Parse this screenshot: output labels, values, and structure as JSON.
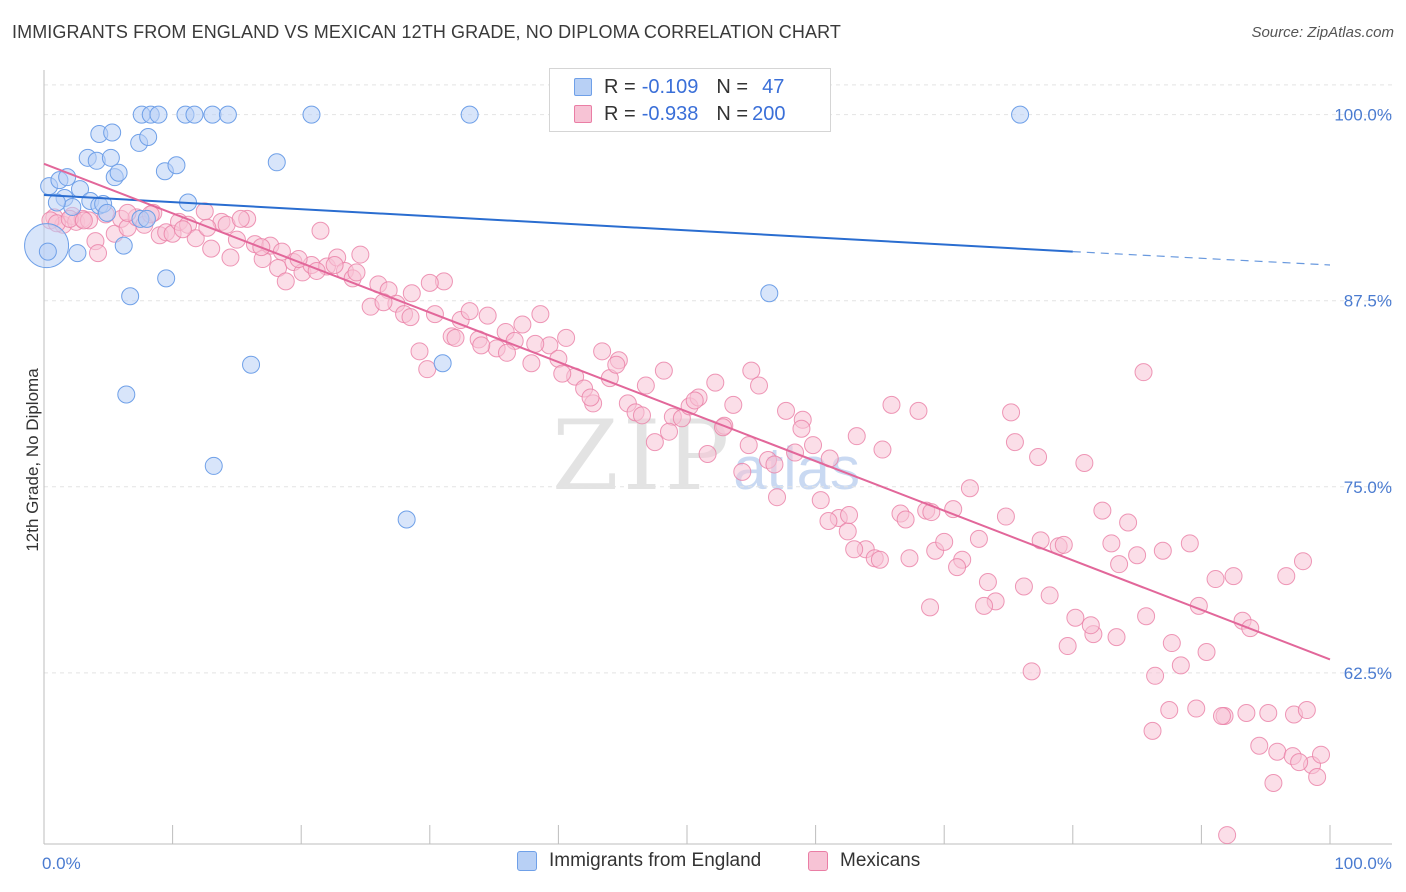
{
  "title": "IMMIGRANTS FROM ENGLAND VS MEXICAN 12TH GRADE, NO DIPLOMA CORRELATION CHART",
  "source": "Source: ZipAtlas.com",
  "watermark": {
    "main": "ZIP",
    "sub": "atlas"
  },
  "colors": {
    "blue": "#6fa0e8",
    "blue_fill": "#b8d0f5",
    "pink": "#ea7ea5",
    "pink_fill": "#f7c3d5",
    "blue_line": "#2a6dd0",
    "pink_line": "#e2679a"
  },
  "legend": {
    "rows": [
      {
        "r_label": "R =",
        "r_value": "-0.109",
        "n_label": "N =",
        "n_value": "47"
      },
      {
        "r_label": "R =",
        "r_value": "-0.938",
        "n_label": "N =",
        "n_value": "200"
      }
    ]
  },
  "bottom_legend": [
    "Immigrants from England",
    "Mexicans"
  ],
  "chart_data": {
    "type": "scatter",
    "xlabel": "",
    "ylabel": "12th Grade, No Diploma",
    "xlim": [
      0,
      100
    ],
    "ylim": [
      51,
      103
    ],
    "x_ticks": [
      "0.0%",
      "100.0%"
    ],
    "y_ticks": [
      {
        "value": 100,
        "label": "100.0%"
      },
      {
        "value": 87.5,
        "label": "87.5%"
      },
      {
        "value": 75,
        "label": "75.0%"
      },
      {
        "value": 62.5,
        "label": "62.5%"
      }
    ],
    "grid": true,
    "series": [
      {
        "name": "Immigrants from England",
        "trend": {
          "x0": 0,
          "y0": 94.6,
          "x1": 80,
          "y1": 90.8,
          "dashed_to_x": 100,
          "dashed_to_y": 89.9
        },
        "points": [
          [
            0.4,
            95.2
          ],
          [
            1.2,
            95.6
          ],
          [
            1.8,
            95.8
          ],
          [
            1.6,
            94.4
          ],
          [
            2.2,
            93.8
          ],
          [
            2.8,
            95.0
          ],
          [
            3.4,
            97.1
          ],
          [
            3.6,
            94.2
          ],
          [
            4.1,
            96.9
          ],
          [
            4.3,
            98.7
          ],
          [
            4.3,
            93.9
          ],
          [
            4.6,
            94.0
          ],
          [
            4.9,
            93.4
          ],
          [
            5.2,
            97.1
          ],
          [
            5.3,
            98.8
          ],
          [
            5.5,
            95.8
          ],
          [
            5.8,
            96.1
          ],
          [
            6.2,
            91.2
          ],
          [
            6.7,
            87.8
          ],
          [
            6.4,
            81.2
          ],
          [
            7.4,
            98.1
          ],
          [
            7.5,
            93.0
          ],
          [
            8.1,
            98.5
          ],
          [
            8.0,
            93.0
          ],
          [
            7.6,
            100.0
          ],
          [
            8.3,
            100.0
          ],
          [
            8.9,
            100.0
          ],
          [
            9.4,
            96.2
          ],
          [
            9.5,
            89.0
          ],
          [
            10.3,
            96.6
          ],
          [
            11.2,
            94.1
          ],
          [
            11.0,
            100.0
          ],
          [
            11.7,
            100.0
          ],
          [
            13.1,
            100.0
          ],
          [
            13.2,
            76.4
          ],
          [
            14.3,
            100.0
          ],
          [
            16.1,
            83.2
          ],
          [
            18.1,
            96.8
          ],
          [
            20.8,
            100.0
          ],
          [
            28.2,
            72.8
          ],
          [
            31.0,
            83.3
          ],
          [
            33.1,
            100.0
          ],
          [
            56.4,
            88.0
          ],
          [
            75.9,
            100.0
          ],
          [
            0.3,
            90.8
          ],
          [
            2.6,
            90.7
          ],
          [
            1.0,
            94.1
          ]
        ],
        "big_point": [
          0.2,
          91.2
        ]
      },
      {
        "name": "Mexicans",
        "trend": {
          "x0": 0,
          "y0": 96.7,
          "x1": 100,
          "y1": 63.4
        },
        "points": [
          [
            0.8,
            93.1
          ],
          [
            1.5,
            92.6
          ],
          [
            2.2,
            93.2
          ],
          [
            2.5,
            92.8
          ],
          [
            3.0,
            93.0
          ],
          [
            3.5,
            92.9
          ],
          [
            4.0,
            91.5
          ],
          [
            4.8,
            93.3
          ],
          [
            5.5,
            92.0
          ],
          [
            6.0,
            93.0
          ],
          [
            6.5,
            92.4
          ],
          [
            7.2,
            93.1
          ],
          [
            7.8,
            92.6
          ],
          [
            8.5,
            93.4
          ],
          [
            9.0,
            91.9
          ],
          [
            9.5,
            92.1
          ],
          [
            10.0,
            92.0
          ],
          [
            10.5,
            92.8
          ],
          [
            11.2,
            92.6
          ],
          [
            11.8,
            91.7
          ],
          [
            12.5,
            93.5
          ],
          [
            13.0,
            91.0
          ],
          [
            13.8,
            92.8
          ],
          [
            14.5,
            90.4
          ],
          [
            15.0,
            91.6
          ],
          [
            15.8,
            93.0
          ],
          [
            16.4,
            91.3
          ],
          [
            17.0,
            90.3
          ],
          [
            17.6,
            91.2
          ],
          [
            18.2,
            89.7
          ],
          [
            18.8,
            88.8
          ],
          [
            19.4,
            90.1
          ],
          [
            20.1,
            89.4
          ],
          [
            20.8,
            89.9
          ],
          [
            21.5,
            92.2
          ],
          [
            22.0,
            89.8
          ],
          [
            22.8,
            90.4
          ],
          [
            23.4,
            89.5
          ],
          [
            24.0,
            89.0
          ],
          [
            24.6,
            90.6
          ],
          [
            25.4,
            87.1
          ],
          [
            26.0,
            88.6
          ],
          [
            26.8,
            88.2
          ],
          [
            27.4,
            87.3
          ],
          [
            28.0,
            86.6
          ],
          [
            28.6,
            88.0
          ],
          [
            29.2,
            84.1
          ],
          [
            29.8,
            82.9
          ],
          [
            30.4,
            86.6
          ],
          [
            31.1,
            88.8
          ],
          [
            31.7,
            85.1
          ],
          [
            32.4,
            86.2
          ],
          [
            33.1,
            86.8
          ],
          [
            33.8,
            84.9
          ],
          [
            34.5,
            86.5
          ],
          [
            35.2,
            84.3
          ],
          [
            35.9,
            85.4
          ],
          [
            36.6,
            84.8
          ],
          [
            37.2,
            85.9
          ],
          [
            37.9,
            83.3
          ],
          [
            38.6,
            86.6
          ],
          [
            39.3,
            84.5
          ],
          [
            40.0,
            83.6
          ],
          [
            40.6,
            85.0
          ],
          [
            41.3,
            82.4
          ],
          [
            42.0,
            81.6
          ],
          [
            42.7,
            80.6
          ],
          [
            43.4,
            84.1
          ],
          [
            44.0,
            82.3
          ],
          [
            44.7,
            83.5
          ],
          [
            45.4,
            80.6
          ],
          [
            46.0,
            80.0
          ],
          [
            46.8,
            81.8
          ],
          [
            47.5,
            78.0
          ],
          [
            48.2,
            82.8
          ],
          [
            48.9,
            79.7
          ],
          [
            49.6,
            79.6
          ],
          [
            50.2,
            80.4
          ],
          [
            50.9,
            81.0
          ],
          [
            51.6,
            77.2
          ],
          [
            52.2,
            82.0
          ],
          [
            52.9,
            79.1
          ],
          [
            53.6,
            80.5
          ],
          [
            54.3,
            76.0
          ],
          [
            55.0,
            82.8
          ],
          [
            55.6,
            81.8
          ],
          [
            56.3,
            76.8
          ],
          [
            57.0,
            74.3
          ],
          [
            57.7,
            80.1
          ],
          [
            58.4,
            77.3
          ],
          [
            59.0,
            79.5
          ],
          [
            59.8,
            77.8
          ],
          [
            60.4,
            74.1
          ],
          [
            61.1,
            76.9
          ],
          [
            61.8,
            72.9
          ],
          [
            62.5,
            72.0
          ],
          [
            63.2,
            78.4
          ],
          [
            63.9,
            70.8
          ],
          [
            64.6,
            70.2
          ],
          [
            65.2,
            77.5
          ],
          [
            65.9,
            80.5
          ],
          [
            66.6,
            73.2
          ],
          [
            67.3,
            70.2
          ],
          [
            68.0,
            80.1
          ],
          [
            68.6,
            73.4
          ],
          [
            69.3,
            70.7
          ],
          [
            70.0,
            71.3
          ],
          [
            70.7,
            73.5
          ],
          [
            71.4,
            70.1
          ],
          [
            72.0,
            74.9
          ],
          [
            72.7,
            71.5
          ],
          [
            73.4,
            68.6
          ],
          [
            74.0,
            67.3
          ],
          [
            74.8,
            73.0
          ],
          [
            75.5,
            78.0
          ],
          [
            76.2,
            68.3
          ],
          [
            76.8,
            62.6
          ],
          [
            77.5,
            71.4
          ],
          [
            78.2,
            67.7
          ],
          [
            78.9,
            71.0
          ],
          [
            79.6,
            64.3
          ],
          [
            80.2,
            66.2
          ],
          [
            80.9,
            76.6
          ],
          [
            81.6,
            65.1
          ],
          [
            82.3,
            73.4
          ],
          [
            83.0,
            71.2
          ],
          [
            83.6,
            69.8
          ],
          [
            84.3,
            72.6
          ],
          [
            85.0,
            70.4
          ],
          [
            85.7,
            66.3
          ],
          [
            86.4,
            62.3
          ],
          [
            87.0,
            70.7
          ],
          [
            87.7,
            64.5
          ],
          [
            88.4,
            63.0
          ],
          [
            89.1,
            71.2
          ],
          [
            89.8,
            67.0
          ],
          [
            90.4,
            63.9
          ],
          [
            91.1,
            68.8
          ],
          [
            91.8,
            59.6
          ],
          [
            92.5,
            69.0
          ],
          [
            93.2,
            66.0
          ],
          [
            93.8,
            65.5
          ],
          [
            94.5,
            57.6
          ],
          [
            95.2,
            59.8
          ],
          [
            95.9,
            57.2
          ],
          [
            96.6,
            69.0
          ],
          [
            97.2,
            59.7
          ],
          [
            97.9,
            70.0
          ],
          [
            98.6,
            56.3
          ],
          [
            99.3,
            57.0
          ],
          [
            0.5,
            92.9
          ],
          [
            1.0,
            92.7
          ],
          [
            2.0,
            93.0
          ],
          [
            3.1,
            92.9
          ],
          [
            4.2,
            90.7
          ],
          [
            6.5,
            93.4
          ],
          [
            8.3,
            93.3
          ],
          [
            10.8,
            92.3
          ],
          [
            12.7,
            92.4
          ],
          [
            14.2,
            92.6
          ],
          [
            15.3,
            93.0
          ],
          [
            16.9,
            91.1
          ],
          [
            18.5,
            90.8
          ],
          [
            19.8,
            90.3
          ],
          [
            21.2,
            89.5
          ],
          [
            22.6,
            89.9
          ],
          [
            24.3,
            89.4
          ],
          [
            26.4,
            87.4
          ],
          [
            28.5,
            86.4
          ],
          [
            30.0,
            88.7
          ],
          [
            32.0,
            85.0
          ],
          [
            34.0,
            84.5
          ],
          [
            36.0,
            84.0
          ],
          [
            38.2,
            84.6
          ],
          [
            40.3,
            82.6
          ],
          [
            42.5,
            81.0
          ],
          [
            44.5,
            83.2
          ],
          [
            46.5,
            79.8
          ],
          [
            48.6,
            78.7
          ],
          [
            50.6,
            80.8
          ],
          [
            52.8,
            79.0
          ],
          [
            54.8,
            77.8
          ],
          [
            56.8,
            76.5
          ],
          [
            58.9,
            78.9
          ],
          [
            61.0,
            72.7
          ],
          [
            63.0,
            70.8
          ],
          [
            65.0,
            70.1
          ],
          [
            67.0,
            72.8
          ],
          [
            69.0,
            73.3
          ],
          [
            71.0,
            69.6
          ],
          [
            73.1,
            67.0
          ],
          [
            75.2,
            80.0
          ],
          [
            77.3,
            77.0
          ],
          [
            79.3,
            71.1
          ],
          [
            81.4,
            65.7
          ],
          [
            83.4,
            64.9
          ],
          [
            85.5,
            82.7
          ],
          [
            87.5,
            60.0
          ],
          [
            89.6,
            60.1
          ],
          [
            91.6,
            59.6
          ],
          [
            93.5,
            59.8
          ],
          [
            95.6,
            55.1
          ],
          [
            97.1,
            56.9
          ],
          [
            97.6,
            56.5
          ],
          [
            98.2,
            60.0
          ],
          [
            99.0,
            55.5
          ],
          [
            62.6,
            73.1
          ],
          [
            68.9,
            66.9
          ],
          [
            86.2,
            58.6
          ],
          [
            92.0,
            51.6
          ]
        ]
      }
    ]
  }
}
